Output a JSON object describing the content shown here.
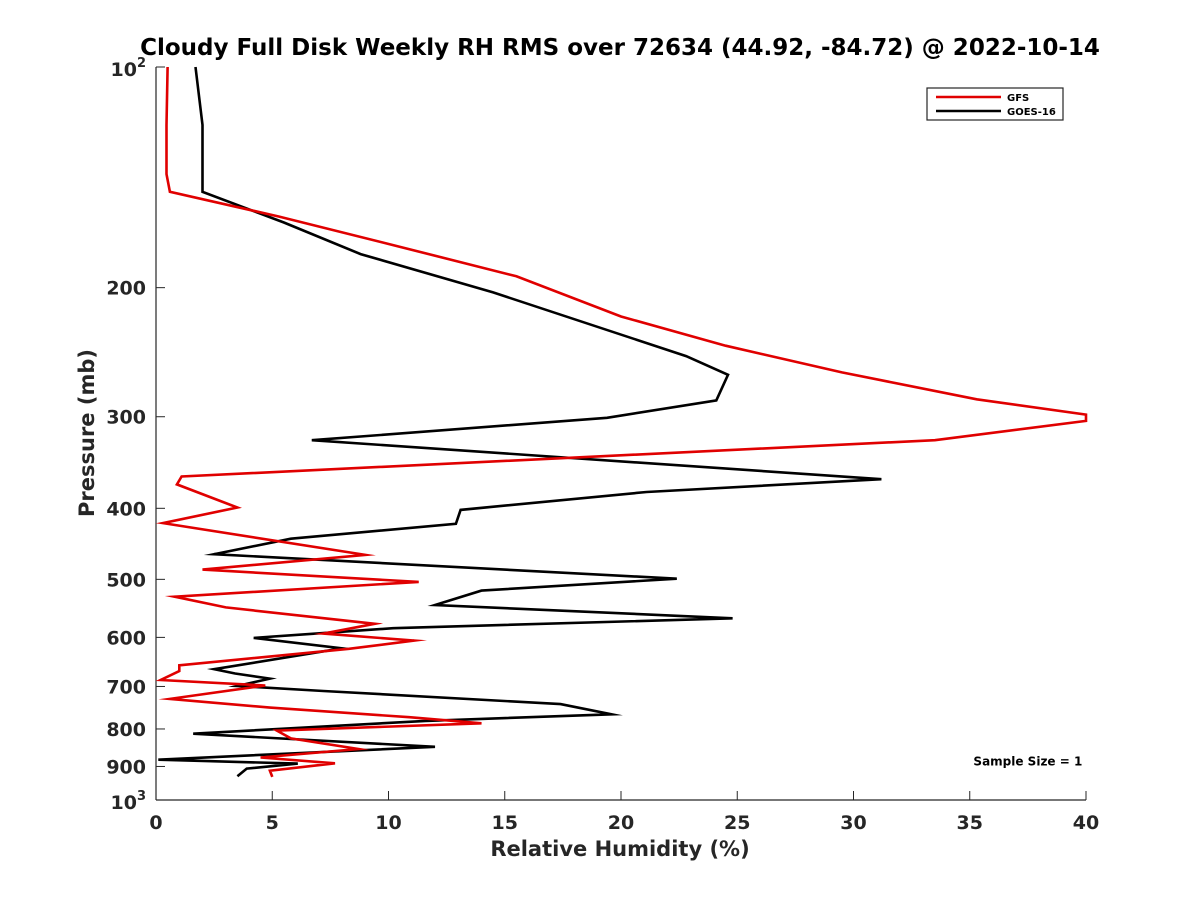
{
  "chart_data": {
    "type": "line",
    "title": "Cloudy Full Disk Weekly RH RMS over 72634 (44.92, -84.72) @ 2022-10-14",
    "xlabel": "Relative Humidity (%)",
    "ylabel": "Pressure (mb)",
    "xlim": [
      0,
      40
    ],
    "ylim": [
      100,
      1000
    ],
    "y_scale": "log",
    "y_reversed": true,
    "x_ticks": [
      "0",
      "5",
      "10",
      "15",
      "20",
      "25",
      "30",
      "35",
      "40"
    ],
    "y_ticks": [
      {
        "value": 100,
        "base": "10",
        "exp": "2"
      },
      {
        "value": 200,
        "label": "200"
      },
      {
        "value": 300,
        "label": "300"
      },
      {
        "value": 400,
        "label": "400"
      },
      {
        "value": 500,
        "label": "500"
      },
      {
        "value": 600,
        "label": "600"
      },
      {
        "value": 700,
        "label": "700"
      },
      {
        "value": 800,
        "label": "800"
      },
      {
        "value": 900,
        "label": "900"
      },
      {
        "value": 1000,
        "base": "10",
        "exp": "3"
      }
    ],
    "grid": false,
    "legend_position": "top-right",
    "series": [
      {
        "name": "GFS",
        "color": "#e00000",
        "points": [
          [
            0.5,
            100
          ],
          [
            0.45,
            120
          ],
          [
            0.45,
            140
          ],
          [
            0.6,
            148
          ],
          [
            5.3,
            160
          ],
          [
            10.2,
            175
          ],
          [
            15.5,
            193
          ],
          [
            20,
            219
          ],
          [
            24.5,
            240
          ],
          [
            29.5,
            261
          ],
          [
            35.3,
            284
          ],
          [
            40,
            298
          ],
          [
            40,
            304
          ],
          [
            33.5,
            323
          ],
          [
            1.1,
            362
          ],
          [
            0.9,
            371
          ],
          [
            3.5,
            399
          ],
          [
            0.3,
            419
          ],
          [
            9,
            463
          ],
          [
            2,
            485
          ],
          [
            11.3,
            504
          ],
          [
            0.8,
            528
          ],
          [
            3,
            546
          ],
          [
            9.4,
            575
          ],
          [
            7.2,
            593
          ],
          [
            11.1,
            606
          ],
          [
            8.3,
            622
          ],
          [
            1,
            655
          ],
          [
            1,
            667
          ],
          [
            0.2,
            686
          ],
          [
            4.7,
            698
          ],
          [
            0.6,
            728
          ],
          [
            4.9,
            748
          ],
          [
            10.9,
            771
          ],
          [
            14,
            786
          ],
          [
            5.2,
            804
          ],
          [
            5.8,
            824
          ],
          [
            8.7,
            852
          ],
          [
            4.5,
            875
          ],
          [
            7.7,
            891
          ],
          [
            4.9,
            912
          ],
          [
            5,
            930
          ]
        ]
      },
      {
        "name": "GOES-16",
        "color": "#000000",
        "points": [
          [
            1.7,
            100
          ],
          [
            2,
            120
          ],
          [
            2,
            148
          ],
          [
            5.5,
            163
          ],
          [
            8.8,
            180
          ],
          [
            14.5,
            203
          ],
          [
            22.8,
            248
          ],
          [
            24.6,
            263
          ],
          [
            24.1,
            285
          ],
          [
            19.4,
            301
          ],
          [
            6.7,
            323
          ],
          [
            31.2,
            365
          ],
          [
            21.1,
            380
          ],
          [
            13.1,
            402
          ],
          [
            12.9,
            420
          ],
          [
            5.8,
            440
          ],
          [
            2.5,
            462
          ],
          [
            22.4,
            499
          ],
          [
            14,
            518
          ],
          [
            12,
            542
          ],
          [
            24.8,
            565
          ],
          [
            10.2,
            583
          ],
          [
            4.2,
            601
          ],
          [
            8,
            621
          ],
          [
            2.5,
            663
          ],
          [
            3.4,
            672
          ],
          [
            4.9,
            683
          ],
          [
            3.5,
            699
          ],
          [
            7.2,
            710
          ],
          [
            17.4,
            740
          ],
          [
            19.6,
            764
          ],
          [
            11.6,
            780
          ],
          [
            1.6,
            812
          ],
          [
            12,
            846
          ],
          [
            0.1,
            881
          ],
          [
            6.1,
            892
          ],
          [
            3.9,
            906
          ],
          [
            3.5,
            928
          ]
        ]
      }
    ],
    "annotations": [
      {
        "text": "Sample Size = 1",
        "x": 37.5,
        "y": 900
      }
    ]
  }
}
